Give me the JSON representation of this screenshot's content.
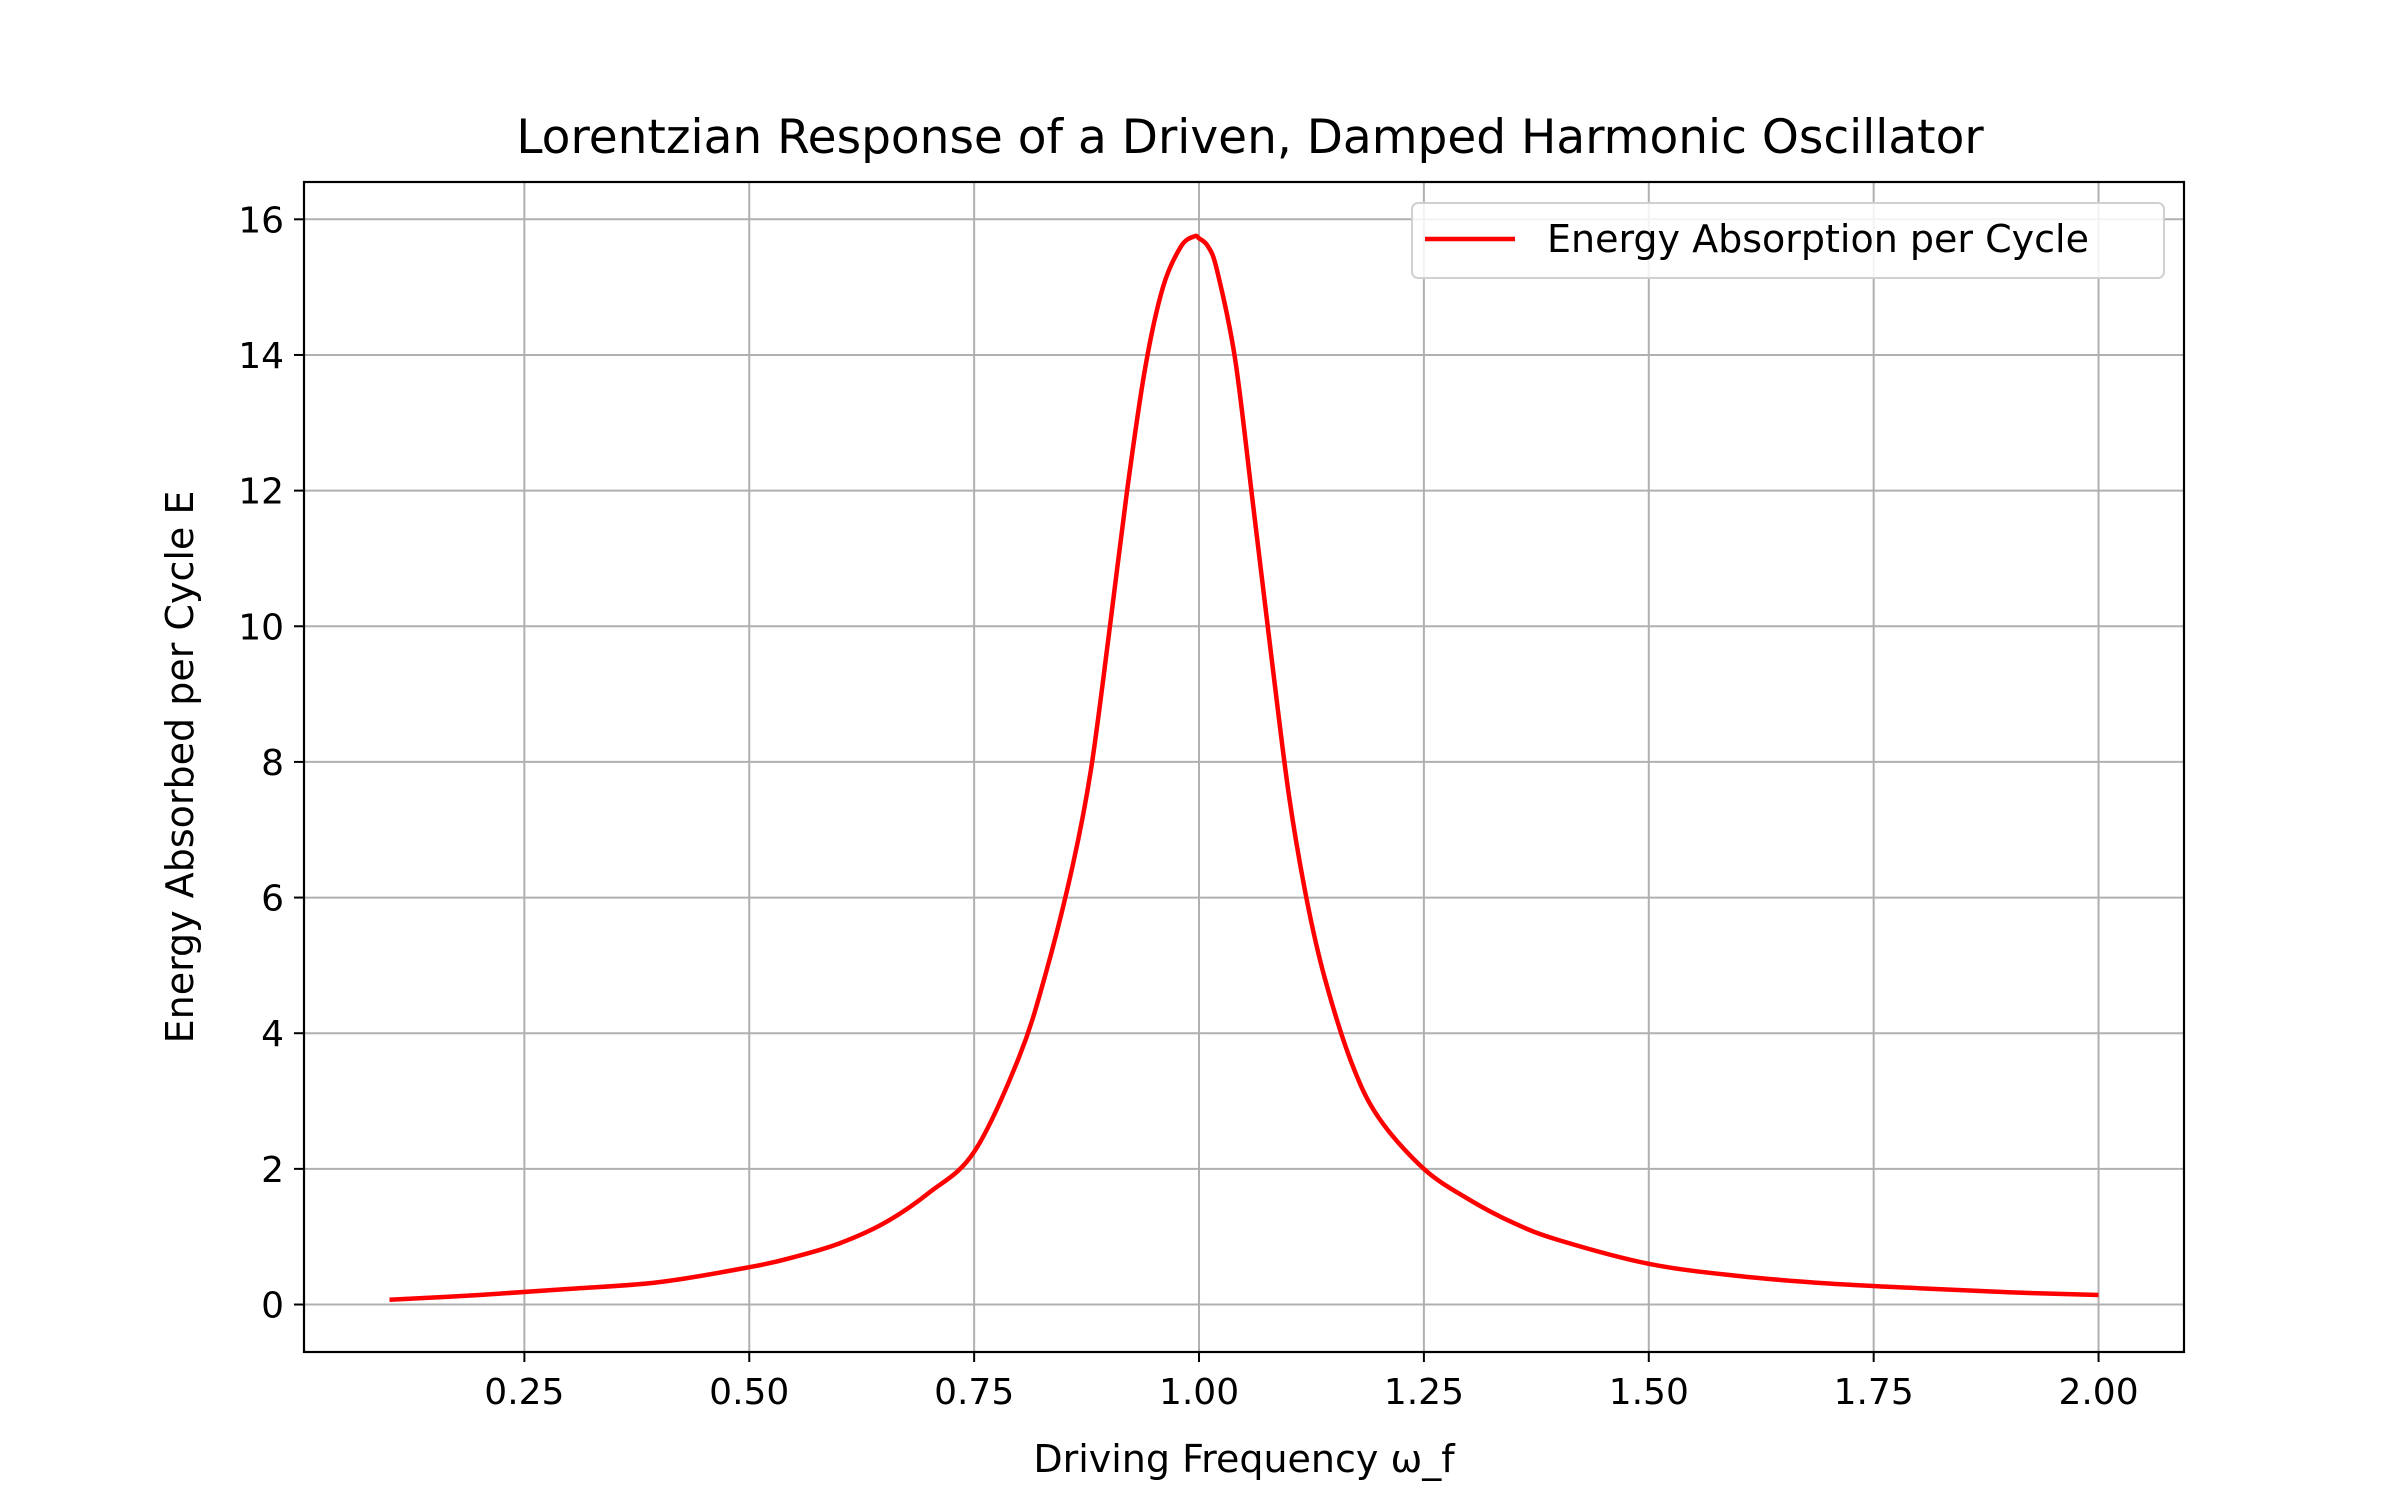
{
  "chart_data": {
    "type": "line",
    "title": "Lorentzian Response of a Driven, Damped Harmonic Oscillator",
    "xlabel": "Driving Frequency ω_f",
    "ylabel": "Energy Absorbed per Cycle E",
    "xlim": [
      0.005,
      2.095
    ],
    "ylim": [
      -0.7,
      16.55
    ],
    "xticks": [
      0.25,
      0.5,
      0.75,
      1.0,
      1.25,
      1.5,
      1.75,
      2.0
    ],
    "xtick_labels": [
      "0.25",
      "0.50",
      "0.75",
      "1.00",
      "1.25",
      "1.50",
      "1.75",
      "2.00"
    ],
    "yticks": [
      0,
      2,
      4,
      6,
      8,
      10,
      12,
      14,
      16
    ],
    "ytick_labels": [
      "0",
      "2",
      "4",
      "6",
      "8",
      "10",
      "12",
      "14",
      "16"
    ],
    "grid": true,
    "legend_position": "top-right",
    "colors": {
      "line": "#ff0000",
      "grid": "#b0b0b0",
      "axes": "#000000"
    },
    "series": [
      {
        "name": "Energy Absorption per Cycle",
        "x": [
          0.1,
          0.2,
          0.3,
          0.4,
          0.5,
          0.55,
          0.6,
          0.65,
          0.7,
          0.75,
          0.8,
          0.83,
          0.86,
          0.88,
          0.9,
          0.92,
          0.94,
          0.96,
          0.98,
          0.995,
          1.0,
          1.01,
          1.02,
          1.04,
          1.06,
          1.08,
          1.1,
          1.12,
          1.14,
          1.17,
          1.2,
          1.25,
          1.3,
          1.35,
          1.4,
          1.5,
          1.6,
          1.7,
          1.8,
          1.9,
          2.0
        ],
        "y": [
          0.07,
          0.14,
          0.23,
          0.33,
          0.55,
          0.7,
          0.9,
          1.2,
          1.65,
          2.25,
          3.65,
          4.9,
          6.5,
          7.9,
          9.9,
          12.0,
          13.8,
          15.0,
          15.6,
          15.75,
          15.72,
          15.6,
          15.25,
          13.95,
          11.8,
          9.6,
          7.5,
          5.95,
          4.8,
          3.55,
          2.75,
          2.0,
          1.55,
          1.2,
          0.95,
          0.6,
          0.42,
          0.31,
          0.24,
          0.18,
          0.14
        ]
      }
    ]
  }
}
